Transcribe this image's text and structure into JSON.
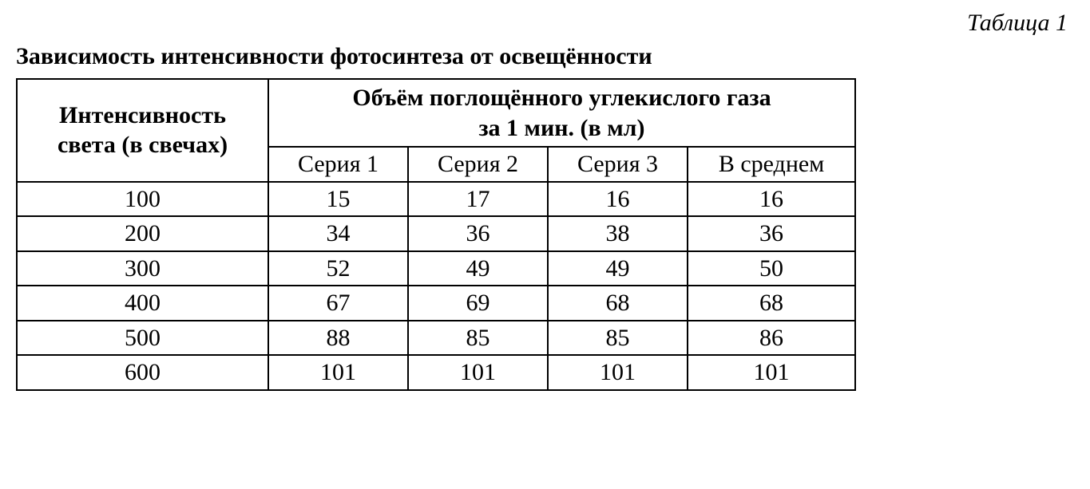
{
  "label": "Таблица 1",
  "title": "Зависимость интенсивности фотосинтеза от освещённости",
  "table": {
    "type": "table",
    "background_color": "#ffffff",
    "border_color": "#000000",
    "text_color": "#000000",
    "title_fontsize": 30,
    "label_fontsize": 30,
    "cell_fontsize": 30,
    "header": {
      "rowhead_line1": "Интенсивность",
      "rowhead_line2": "света (в свечах)",
      "spanhead_line1": "Объём поглощённого углекислого газа",
      "spanhead_line2": "за 1 мин. (в мл)",
      "sub1": "Серия 1",
      "sub2": "Серия 2",
      "sub3": "Серия 3",
      "sub4": "В среднем"
    },
    "rows": [
      {
        "intensity": "100",
        "s1": "15",
        "s2": "17",
        "s3": "16",
        "avg": "16"
      },
      {
        "intensity": "200",
        "s1": "34",
        "s2": "36",
        "s3": "38",
        "avg": "36"
      },
      {
        "intensity": "300",
        "s1": "52",
        "s2": "49",
        "s3": "49",
        "avg": "50"
      },
      {
        "intensity": "400",
        "s1": "67",
        "s2": "69",
        "s3": "68",
        "avg": "68"
      },
      {
        "intensity": "500",
        "s1": "88",
        "s2": "85",
        "s3": "85",
        "avg": "86"
      },
      {
        "intensity": "600",
        "s1": "101",
        "s2": "101",
        "s3": "101",
        "avg": "101"
      }
    ]
  }
}
